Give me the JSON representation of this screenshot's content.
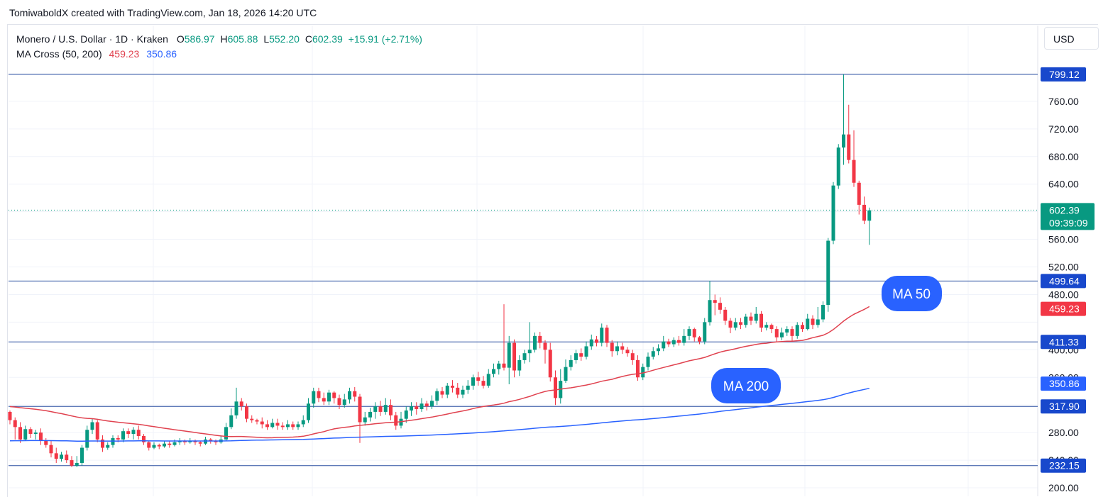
{
  "attribution": "TomiwaboldX created with TradingView.com, Jan 18, 2026 14:20 UTC",
  "legend": {
    "symbol": "Monero / U.S. Dollar · 1D · Kraken",
    "open_key": "O",
    "open": "586.97",
    "high_key": "H",
    "high": "605.88",
    "low_key": "L",
    "low": "552.20",
    "close_key": "C",
    "close": "602.39",
    "change": "+15.91 (+2.71%)",
    "indicator": "MA Cross (50, 200)",
    "ma50_value": "459.23",
    "ma200_value": "350.86"
  },
  "currency_button": "USD",
  "colors": {
    "up": "#089981",
    "down": "#f23645",
    "ma50": "#e0424f",
    "ma200": "#2962ff",
    "hline": "#2a4fa0",
    "grid": "#f0f3fa",
    "axis_text": "#131722"
  },
  "chart_data": {
    "type": "candlestick",
    "ylim": [
      190,
      830
    ],
    "y_ticks": [
      "200.00",
      "240.00",
      "280.00",
      "360.00",
      "400.00",
      "480.00",
      "520.00",
      "560.00",
      "640.00",
      "680.00",
      "720.00",
      "760.00"
    ],
    "horizontal_levels": [
      "799.12",
      "499.64",
      "411.33",
      "317.90",
      "232.15"
    ],
    "price_tags": [
      {
        "label": "799.12",
        "value": 799.12,
        "color": "#1848cc"
      },
      {
        "label": "499.64",
        "value": 499.64,
        "color": "#1848cc"
      },
      {
        "label": "459.23",
        "value": 459.23,
        "color": "#f23645"
      },
      {
        "label": "411.33",
        "value": 411.33,
        "color": "#1848cc"
      },
      {
        "label": "350.86",
        "value": 350.86,
        "color": "#2962ff"
      },
      {
        "label": "317.90",
        "value": 317.9,
        "color": "#1848cc"
      },
      {
        "label": "232.15",
        "value": 232.15,
        "color": "#1848cc"
      }
    ],
    "last_price": {
      "label": "602.39",
      "countdown": "09:39:09",
      "value": 602.39,
      "color": "#089981"
    },
    "annotations": [
      {
        "text": "MA 50",
        "color": "#2962ff"
      },
      {
        "text": "MA 200",
        "color": "#2962ff"
      }
    ],
    "bars": [
      [
        310,
        298,
        312,
        292
      ],
      [
        298,
        288,
        302,
        270
      ],
      [
        288,
        270,
        295,
        265
      ],
      [
        270,
        285,
        290,
        268
      ],
      [
        285,
        278,
        288,
        272
      ],
      [
        278,
        280,
        284,
        270
      ],
      [
        280,
        268,
        286,
        262
      ],
      [
        268,
        262,
        272,
        258
      ],
      [
        262,
        250,
        268,
        244
      ],
      [
        250,
        242,
        258,
        236
      ],
      [
        242,
        248,
        252,
        238
      ],
      [
        248,
        240,
        254,
        236
      ],
      [
        240,
        232,
        246,
        230
      ],
      [
        232,
        236,
        246,
        230
      ],
      [
        236,
        258,
        262,
        232
      ],
      [
        258,
        284,
        290,
        254
      ],
      [
        284,
        295,
        300,
        278
      ],
      [
        295,
        270,
        298,
        266
      ],
      [
        270,
        258,
        276,
        252
      ],
      [
        258,
        262,
        266,
        255
      ],
      [
        262,
        272,
        276,
        258
      ],
      [
        272,
        270,
        276,
        266
      ],
      [
        270,
        282,
        286,
        266
      ],
      [
        282,
        278,
        286,
        272
      ],
      [
        278,
        284,
        288,
        270
      ],
      [
        284,
        275,
        290,
        270
      ],
      [
        275,
        266,
        278,
        262
      ],
      [
        266,
        258,
        268,
        254
      ],
      [
        258,
        262,
        266,
        256
      ],
      [
        262,
        260,
        264,
        256
      ],
      [
        260,
        264,
        268,
        258
      ],
      [
        264,
        262,
        268,
        258
      ],
      [
        262,
        266,
        270,
        260
      ],
      [
        266,
        268,
        272,
        262
      ],
      [
        268,
        266,
        270,
        262
      ],
      [
        266,
        268,
        272,
        264
      ],
      [
        268,
        266,
        270,
        262
      ],
      [
        266,
        264,
        268,
        260
      ],
      [
        264,
        270,
        274,
        262
      ],
      [
        270,
        268,
        272,
        264
      ],
      [
        268,
        266,
        270,
        262
      ],
      [
        266,
        270,
        276,
        264
      ],
      [
        270,
        288,
        294,
        268
      ],
      [
        288,
        305,
        315,
        285
      ],
      [
        305,
        325,
        345,
        300
      ],
      [
        325,
        318,
        330,
        312
      ],
      [
        318,
        300,
        322,
        295
      ],
      [
        300,
        298,
        305,
        294
      ],
      [
        298,
        296,
        300,
        292
      ],
      [
        296,
        292,
        302,
        286
      ],
      [
        292,
        288,
        298,
        284
      ],
      [
        288,
        294,
        300,
        286
      ],
      [
        294,
        290,
        300,
        284
      ],
      [
        290,
        288,
        295,
        284
      ],
      [
        288,
        292,
        298,
        284
      ],
      [
        292,
        288,
        296,
        284
      ],
      [
        288,
        292,
        296,
        284
      ],
      [
        292,
        298,
        305,
        288
      ],
      [
        298,
        322,
        330,
        294
      ],
      [
        322,
        340,
        345,
        316
      ],
      [
        340,
        330,
        345,
        324
      ],
      [
        330,
        325,
        338,
        320
      ],
      [
        325,
        338,
        342,
        320
      ],
      [
        338,
        330,
        340,
        322
      ],
      [
        330,
        320,
        335,
        314
      ],
      [
        320,
        328,
        336,
        316
      ],
      [
        328,
        340,
        345,
        322
      ],
      [
        340,
        332,
        346,
        325
      ],
      [
        332,
        295,
        336,
        265
      ],
      [
        295,
        302,
        310,
        290
      ],
      [
        302,
        310,
        316,
        296
      ],
      [
        310,
        318,
        324,
        300
      ],
      [
        318,
        310,
        326,
        304
      ],
      [
        310,
        320,
        330,
        306
      ],
      [
        320,
        305,
        328,
        298
      ],
      [
        305,
        290,
        310,
        284
      ],
      [
        290,
        300,
        310,
        286
      ],
      [
        300,
        312,
        318,
        294
      ],
      [
        312,
        318,
        324,
        304
      ],
      [
        318,
        314,
        324,
        306
      ],
      [
        314,
        322,
        330,
        310
      ],
      [
        322,
        318,
        326,
        312
      ],
      [
        318,
        326,
        334,
        314
      ],
      [
        326,
        340,
        344,
        320
      ],
      [
        340,
        335,
        346,
        330
      ],
      [
        335,
        348,
        352,
        330
      ],
      [
        348,
        345,
        356,
        338
      ],
      [
        345,
        335,
        352,
        330
      ],
      [
        335,
        342,
        348,
        330
      ],
      [
        342,
        348,
        356,
        336
      ],
      [
        348,
        360,
        364,
        342
      ],
      [
        360,
        355,
        368,
        348
      ],
      [
        355,
        348,
        362,
        344
      ],
      [
        348,
        365,
        372,
        345
      ],
      [
        365,
        372,
        380,
        360
      ],
      [
        372,
        380,
        384,
        364
      ],
      [
        380,
        374,
        466,
        370
      ],
      [
        374,
        410,
        420,
        350
      ],
      [
        410,
        370,
        415,
        360
      ],
      [
        370,
        385,
        392,
        362
      ],
      [
        385,
        395,
        400,
        380
      ],
      [
        395,
        400,
        440,
        382
      ],
      [
        400,
        420,
        425,
        396
      ],
      [
        420,
        410,
        426,
        402
      ],
      [
        410,
        400,
        414,
        380
      ],
      [
        400,
        360,
        410,
        354
      ],
      [
        360,
        330,
        370,
        320
      ],
      [
        330,
        355,
        372,
        322
      ],
      [
        355,
        375,
        386,
        352
      ],
      [
        375,
        385,
        392,
        370
      ],
      [
        385,
        395,
        400,
        380
      ],
      [
        395,
        390,
        402,
        384
      ],
      [
        390,
        405,
        412,
        386
      ],
      [
        405,
        415,
        422,
        400
      ],
      [
        415,
        410,
        420,
        405
      ],
      [
        410,
        432,
        438,
        405
      ],
      [
        432,
        410,
        436,
        404
      ],
      [
        410,
        398,
        414,
        390
      ],
      [
        398,
        405,
        412,
        392
      ],
      [
        405,
        400,
        410,
        394
      ],
      [
        400,
        395,
        404,
        390
      ],
      [
        395,
        385,
        400,
        378
      ],
      [
        385,
        360,
        392,
        355
      ],
      [
        360,
        375,
        380,
        356
      ],
      [
        375,
        390,
        396,
        370
      ],
      [
        390,
        398,
        404,
        386
      ],
      [
        398,
        402,
        408,
        392
      ],
      [
        402,
        412,
        420,
        398
      ],
      [
        412,
        408,
        416,
        404
      ],
      [
        408,
        414,
        418,
        404
      ],
      [
        414,
        410,
        420,
        406
      ],
      [
        410,
        420,
        430,
        406
      ],
      [
        420,
        430,
        434,
        414
      ],
      [
        430,
        418,
        432,
        412
      ],
      [
        418,
        412,
        420,
        408
      ],
      [
        412,
        440,
        446,
        408
      ],
      [
        440,
        472,
        500,
        435
      ],
      [
        472,
        468,
        480,
        450
      ],
      [
        468,
        458,
        476,
        452
      ],
      [
        458,
        442,
        462,
        436
      ],
      [
        442,
        432,
        446,
        424
      ],
      [
        432,
        440,
        446,
        428
      ],
      [
        440,
        436,
        446,
        430
      ],
      [
        436,
        448,
        452,
        432
      ],
      [
        448,
        442,
        454,
        436
      ],
      [
        442,
        452,
        462,
        438
      ],
      [
        452,
        432,
        456,
        426
      ],
      [
        432,
        436,
        440,
        428
      ],
      [
        436,
        430,
        438,
        424
      ],
      [
        430,
        418,
        434,
        412
      ],
      [
        418,
        425,
        432,
        414
      ],
      [
        425,
        430,
        434,
        420
      ],
      [
        430,
        420,
        434,
        412
      ],
      [
        420,
        436,
        440,
        416
      ],
      [
        436,
        430,
        440,
        426
      ],
      [
        430,
        445,
        452,
        428
      ],
      [
        445,
        436,
        450,
        430
      ],
      [
        436,
        444,
        462,
        432
      ],
      [
        444,
        465,
        470,
        440
      ],
      [
        465,
        558,
        562,
        455
      ],
      [
        558,
        638,
        643,
        553
      ],
      [
        638,
        693,
        698,
        633
      ],
      [
        693,
        712,
        799,
        668
      ],
      [
        712,
        675,
        755,
        670
      ],
      [
        675,
        642,
        718,
        636
      ],
      [
        642,
        610,
        645,
        596
      ],
      [
        610,
        587,
        622,
        582
      ],
      [
        587,
        602,
        606,
        552
      ]
    ]
  }
}
